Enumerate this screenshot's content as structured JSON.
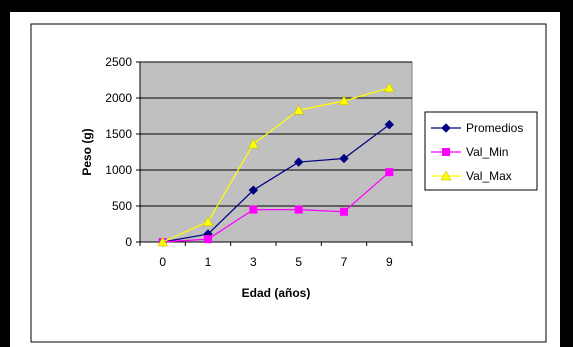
{
  "chart_data": {
    "type": "line",
    "title": "",
    "xlabel": "Edad (años)",
    "ylabel": "Peso (g)",
    "x": [
      "0",
      "1",
      "3",
      "5",
      "7",
      "9"
    ],
    "ylim": [
      0,
      2500
    ],
    "yticks": [
      "0",
      "500",
      "1000",
      "1500",
      "2000",
      "2500"
    ],
    "grid": "horizontal",
    "legend": "right",
    "plot_background": "#c0c0c0",
    "series": [
      {
        "name": "Promedios",
        "values": [
          0,
          110,
          720,
          1110,
          1160,
          1630
        ],
        "color": "#000080",
        "marker": "diamond"
      },
      {
        "name": "Val_Min",
        "values": [
          0,
          40,
          450,
          450,
          420,
          970
        ],
        "color": "#ff00ff",
        "marker": "square"
      },
      {
        "name": "Val_Max",
        "values": [
          0,
          280,
          1360,
          1830,
          1960,
          2140
        ],
        "color": "#ffff00",
        "marker": "triangle"
      }
    ]
  }
}
